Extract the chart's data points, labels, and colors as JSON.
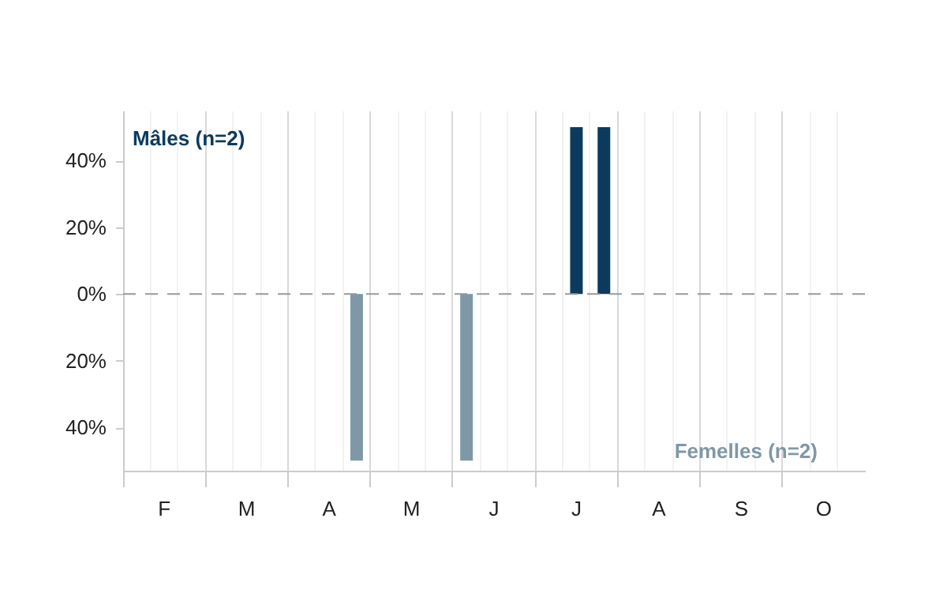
{
  "chart_data": {
    "type": "bar",
    "categories": [
      null,
      "F",
      null,
      null,
      "M",
      null,
      null,
      "A",
      null,
      null,
      "M",
      null,
      null,
      "J",
      null,
      null,
      "J",
      null,
      null,
      "A",
      null,
      null,
      "S",
      null,
      null,
      "O",
      null
    ],
    "series": [
      {
        "name": "Mâles (n=2)",
        "color": "#0b3a5e",
        "values": [
          null,
          null,
          null,
          null,
          null,
          null,
          null,
          null,
          null,
          null,
          null,
          null,
          null,
          null,
          null,
          null,
          50,
          50,
          null,
          null,
          null,
          null,
          null,
          null,
          null,
          null,
          null
        ]
      },
      {
        "name": "Femelles (n=2)",
        "color": "#7f98a8",
        "values": [
          null,
          null,
          null,
          null,
          null,
          null,
          null,
          null,
          -50,
          null,
          null,
          null,
          -50,
          null,
          null,
          null,
          null,
          null,
          null,
          null,
          null,
          null,
          null,
          null,
          null,
          null,
          null
        ]
      }
    ],
    "ylim": [
      -53,
      55
    ],
    "yticks": [
      {
        "value": -40,
        "label": "40%"
      },
      {
        "value": -20,
        "label": "20%"
      },
      {
        "value": 0,
        "label": "0%"
      },
      {
        "value": 20,
        "label": "20%"
      },
      {
        "value": 40,
        "label": "40%"
      }
    ],
    "ref_lines": [
      {
        "axis": "y",
        "value": 0,
        "label": null,
        "color": "#999999",
        "line_style": "dashed"
      }
    ],
    "grid": "x",
    "legend": false
  }
}
